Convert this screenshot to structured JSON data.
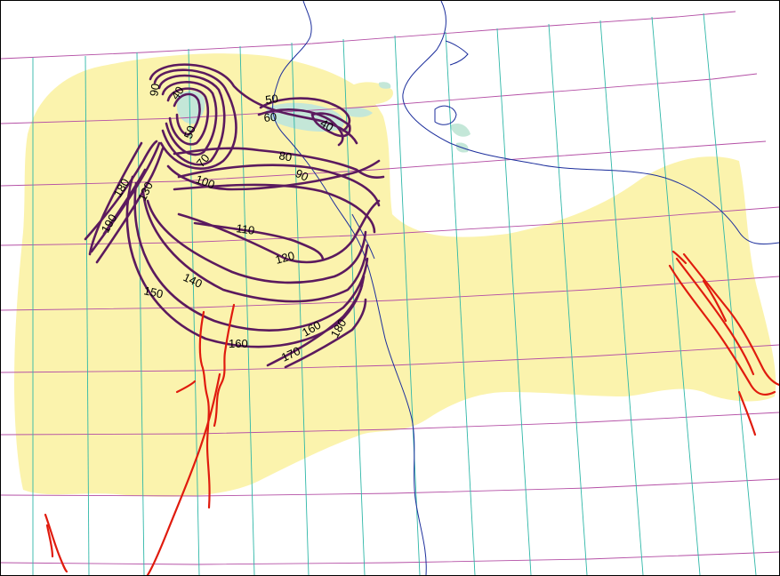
{
  "map": {
    "colors": {
      "background": "#ffffff",
      "extent_fill": "#fbf3ad",
      "water_fill": "#c4e7d8",
      "latitude_lines": "#b44fa5",
      "longitude_lines": "#2fb7a8",
      "contours": "#5b1a5e",
      "faults": "#e01b0e",
      "rivers": "#1c2e9c",
      "label_text": "#000000"
    },
    "contour_labels": [
      "90",
      "40",
      "50",
      "50",
      "60",
      "40",
      "80",
      "90",
      "70",
      "100",
      "180",
      "130",
      "190",
      "110",
      "120",
      "140",
      "150",
      "160",
      "160",
      "170",
      "180"
    ],
    "icons": [
      "contour-isolines",
      "fault-lines",
      "river-lines",
      "graticule"
    ]
  }
}
